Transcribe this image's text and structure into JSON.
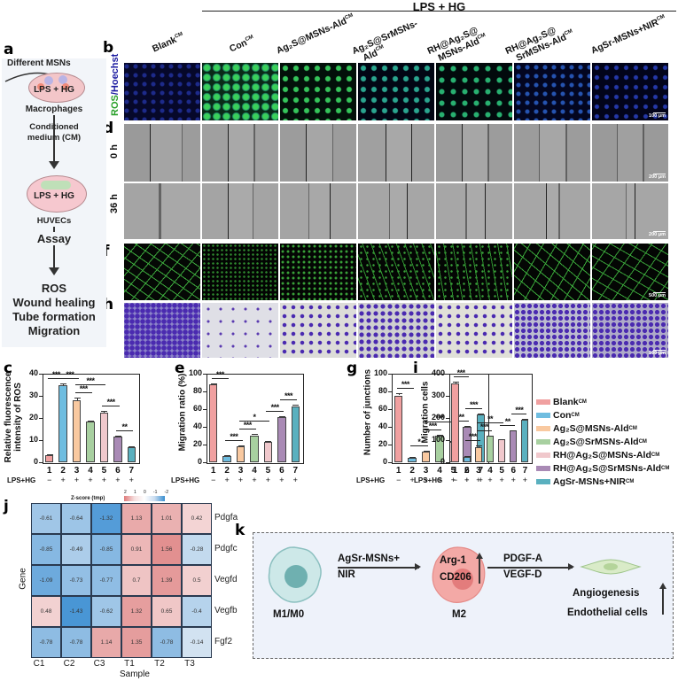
{
  "figure": {
    "panel_letters": [
      "a",
      "b",
      "c",
      "d",
      "e",
      "f",
      "g",
      "h",
      "i",
      "j",
      "k"
    ],
    "header": "LPS + HG",
    "columns": [
      {
        "label": "Blank",
        "sup": "CM"
      },
      {
        "label": "Con",
        "sup": "CM"
      },
      {
        "label": "Ag₂S@MSNs-Ald",
        "sup": "CM"
      },
      {
        "label": "Ag₂S@SrMSNs-",
        "label2": "Ald",
        "sup": "CM"
      },
      {
        "label": "RH@Ag₂S@",
        "label2": "MSNs-Ald",
        "sup": "CM"
      },
      {
        "label": "RH@Ag₂S@",
        "label2": "SrMSNs-Ald",
        "sup": "CM"
      },
      {
        "label": "AgSr-MSNs+NIR",
        "sup": "CM"
      }
    ],
    "row_labels": {
      "ros": [
        "ROS",
        "/Hoechst"
      ],
      "wound_0h": "0 h",
      "wound_36h": "36 h"
    },
    "scale_bars": {
      "ros": "100 μm",
      "wound": "200 μm",
      "tube": "500 μm",
      "migration": "100 μm"
    }
  },
  "panel_a": {
    "top_label": "Different MSNs",
    "dish1_label": "LPS + HG",
    "cell1": "Macrophages",
    "medium": [
      "Conditioned",
      "medium (CM)"
    ],
    "dish2_label": "LPS + HG",
    "cell2": "HUVECs",
    "assay": "Assay",
    "assays": [
      "ROS",
      "Wound healing",
      "Tube formation",
      "Migration"
    ]
  },
  "legend": [
    {
      "label": "Blank",
      "sup": "CM",
      "color": "#f0a0a0"
    },
    {
      "label": "Con",
      "sup": "CM",
      "color": "#6fbde0"
    },
    {
      "label": "Ag₂S@MSNs-Ald",
      "sup": "CM",
      "color": "#f9c9a0"
    },
    {
      "label": "Ag₂S@SrMSNs-Ald",
      "sup": "CM",
      "color": "#a8d0a0"
    },
    {
      "label": "RH@Ag₂S@MSNs-Ald",
      "sup": "CM",
      "color": "#f0c8cc"
    },
    {
      "label": "RH@Ag₂S@SrMSNs-Ald",
      "sup": "CM",
      "color": "#a98ab5"
    },
    {
      "label": "AgSr-MSNs+NIR",
      "sup": "CM",
      "color": "#5ab0bf"
    }
  ],
  "x_groups": [
    "1",
    "2",
    "3",
    "4",
    "5",
    "6",
    "7"
  ],
  "lps_row": {
    "label": "LPS+HG",
    "signs": [
      "−",
      "+",
      "+",
      "+",
      "+",
      "+",
      "+"
    ]
  },
  "chart_data": [
    {
      "panel": "c",
      "type": "bar",
      "title": "",
      "xlabel": "",
      "ylabel": "Relative fluorescence intensity of ROS",
      "ylabel_lines": [
        "Relative fluorescence",
        "intensity of ROS"
      ],
      "categories": [
        "1",
        "2",
        "3",
        "4",
        "5",
        "6",
        "7"
      ],
      "values": [
        3.2,
        35.0,
        28.2,
        18.3,
        22.5,
        11.7,
        6.7
      ],
      "errors": [
        0.3,
        0.6,
        1.0,
        0.6,
        0.9,
        0.5,
        0.7
      ],
      "ylim": [
        0,
        40
      ],
      "yticks": [
        0,
        10,
        20,
        30,
        40
      ],
      "significance": [
        {
          "from": 1,
          "to": 2,
          "label": "***"
        },
        {
          "from": 2,
          "to": 3,
          "label": "***"
        },
        {
          "from": 3,
          "to": 4,
          "label": "***"
        },
        {
          "from": 3,
          "to": 5,
          "label": "***"
        },
        {
          "from": 5,
          "to": 6,
          "label": "***"
        },
        {
          "from": 6,
          "to": 7,
          "label": "**"
        }
      ],
      "grid": false
    },
    {
      "panel": "e",
      "type": "bar",
      "ylabel": "Migration ratio (%)",
      "categories": [
        "1",
        "2",
        "3",
        "4",
        "5",
        "6",
        "7"
      ],
      "values": [
        88,
        7,
        18,
        30.5,
        23.5,
        51,
        63.5
      ],
      "errors": [
        0.8,
        0.8,
        1.5,
        1.2,
        0.6,
        1.5,
        1.2
      ],
      "ylim": [
        0,
        100
      ],
      "yticks": [
        0,
        20,
        40,
        60,
        80,
        100
      ],
      "significance": [
        {
          "from": 1,
          "to": 2,
          "label": "***"
        },
        {
          "from": 2,
          "to": 3,
          "label": "***"
        },
        {
          "from": 3,
          "to": 4,
          "label": "***"
        },
        {
          "from": 3,
          "to": 5,
          "label": "*"
        },
        {
          "from": 5,
          "to": 6,
          "label": "***"
        },
        {
          "from": 6,
          "to": 7,
          "label": "***"
        }
      ],
      "grid": false
    },
    {
      "panel": "g",
      "type": "bar",
      "ylabel": "Number of junctions",
      "categories": [
        "1",
        "2",
        "3",
        "4",
        "5",
        "6",
        "7"
      ],
      "values": [
        75.5,
        5.5,
        12,
        30,
        23,
        40,
        54
      ],
      "errors": [
        2.2,
        0.4,
        0.8,
        0.8,
        0.6,
        0.6,
        0.6
      ],
      "ylim": [
        0,
        100
      ],
      "yticks": [
        0,
        20,
        40,
        60,
        80,
        100
      ],
      "significance": [
        {
          "from": 1,
          "to": 2,
          "label": "***"
        },
        {
          "from": 2,
          "to": 3,
          "label": "*"
        },
        {
          "from": 3,
          "to": 4,
          "label": "***"
        },
        {
          "from": 3,
          "to": 5,
          "label": "***"
        },
        {
          "from": 5,
          "to": 6,
          "label": "***"
        },
        {
          "from": 6,
          "to": 7,
          "label": "***"
        }
      ],
      "grid": false
    },
    {
      "panel": "i",
      "type": "bar",
      "ylabel": "Migration cells",
      "categories": [
        "1",
        "2",
        "3",
        "4",
        "5",
        "6",
        "7"
      ],
      "values": [
        358,
        24,
        70,
        119,
        104,
        143,
        193
      ],
      "errors": [
        8,
        3,
        7,
        2,
        2,
        2,
        2
      ],
      "ylim": [
        0,
        400
      ],
      "yticks": [
        0,
        100,
        200,
        300,
        400
      ],
      "significance": [
        {
          "from": 1,
          "to": 2,
          "label": "***"
        },
        {
          "from": 2,
          "to": 3,
          "label": "***"
        },
        {
          "from": 3,
          "to": 4,
          "label": "***"
        },
        {
          "from": 3,
          "to": 5,
          "label": "**"
        },
        {
          "from": 5,
          "to": 6,
          "label": "**"
        },
        {
          "from": 6,
          "to": 7,
          "label": "***"
        }
      ],
      "grid": false
    },
    {
      "panel": "j",
      "type": "heatmap",
      "title": "Z-score (tmp)",
      "colorbar_ticks": [
        "2",
        "1",
        "0",
        "-1",
        "-2"
      ],
      "xlabel": "Sample",
      "ylabel": "Gene",
      "x": [
        "C1",
        "C2",
        "C3",
        "T1",
        "T2",
        "T3"
      ],
      "y": [
        "Pdgfa",
        "Pdgfc",
        "Vegfd",
        "Vegfb",
        "Fgf2"
      ],
      "values": [
        [
          -0.61,
          -0.64,
          -1.32,
          1.13,
          1.01,
          0.42
        ],
        [
          -0.85,
          -0.49,
          -0.85,
          0.91,
          1.56,
          -0.28
        ],
        [
          -1.09,
          -0.73,
          -0.77,
          0.7,
          1.39,
          0.5
        ],
        [
          0.48,
          -1.43,
          -0.62,
          1.32,
          0.65,
          -0.4
        ],
        [
          -0.78,
          -0.78,
          1.14,
          1.35,
          -0.78,
          -0.14
        ]
      ]
    }
  ],
  "panel_k": {
    "cell1": "M1/M0",
    "arrow1": [
      "AgSr-MSNs+",
      "NIR"
    ],
    "cell2_markers": [
      "Arg-1",
      "CD206"
    ],
    "cell2": "M2",
    "arrow2": [
      "PDGF-A",
      "VEGF-D"
    ],
    "outcome1": "Angiogenesis",
    "outcome2": "Endothelial cells"
  }
}
